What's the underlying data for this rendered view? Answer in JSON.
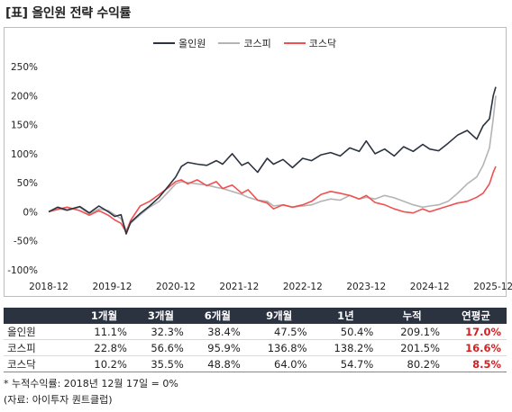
{
  "title": "[표] 올인원 전략 수익률",
  "chart_data": {
    "type": "line",
    "ylim": [
      -100,
      250
    ],
    "yticks": [
      -100,
      -50,
      0,
      50,
      100,
      150,
      200,
      250
    ],
    "ytick_labels": [
      "-100%",
      "-50%",
      "0%",
      "50%",
      "100%",
      "150%",
      "200%",
      "250%"
    ],
    "xlim": [
      2018.96,
      2026.0
    ],
    "xticks": [
      2018.96,
      2019.96,
      2020.96,
      2021.96,
      2022.96,
      2023.96,
      2024.96,
      2025.96
    ],
    "xtick_labels": [
      "2018-12",
      "2019-12",
      "2020-12",
      "2021-12",
      "2022-12",
      "2023-12",
      "2024-12",
      "2025-12"
    ],
    "legend_position": "top-center",
    "series": [
      {
        "name": "올인원",
        "color": "#2b3240",
        "x": [
          2018.96,
          2019.1,
          2019.25,
          2019.45,
          2019.6,
          2019.75,
          2019.9,
          2020.0,
          2020.1,
          2020.18,
          2020.25,
          2020.4,
          2020.55,
          2020.7,
          2020.85,
          2020.96,
          2021.05,
          2021.15,
          2021.3,
          2021.45,
          2021.6,
          2021.7,
          2021.85,
          2022.0,
          2022.1,
          2022.25,
          2022.4,
          2022.5,
          2022.65,
          2022.8,
          2022.96,
          2023.1,
          2023.25,
          2023.4,
          2023.55,
          2023.7,
          2023.85,
          2023.96,
          2024.1,
          2024.25,
          2024.4,
          2024.55,
          2024.7,
          2024.85,
          2024.96,
          2025.1,
          2025.25,
          2025.4,
          2025.55,
          2025.7,
          2025.8,
          2025.9,
          2025.96,
          2026.0
        ],
        "y": [
          0,
          8,
          3,
          9,
          -2,
          10,
          0,
          -8,
          -5,
          -38,
          -18,
          -3,
          10,
          25,
          45,
          60,
          78,
          85,
          82,
          80,
          88,
          82,
          100,
          80,
          85,
          68,
          92,
          82,
          90,
          76,
          92,
          88,
          98,
          102,
          96,
          110,
          104,
          122,
          100,
          108,
          96,
          112,
          104,
          116,
          108,
          105,
          118,
          132,
          140,
          125,
          148,
          160,
          200,
          215
        ]
      },
      {
        "name": "코스피",
        "color": "#b4b4b4",
        "x": [
          2018.96,
          2019.1,
          2019.25,
          2019.45,
          2019.6,
          2019.75,
          2019.9,
          2020.0,
          2020.1,
          2020.18,
          2020.25,
          2020.4,
          2020.55,
          2020.7,
          2020.85,
          2020.96,
          2021.05,
          2021.15,
          2021.3,
          2021.45,
          2021.6,
          2021.7,
          2021.85,
          2022.0,
          2022.1,
          2022.25,
          2022.4,
          2022.5,
          2022.65,
          2022.8,
          2022.96,
          2023.1,
          2023.25,
          2023.4,
          2023.55,
          2023.7,
          2023.85,
          2023.96,
          2024.1,
          2024.25,
          2024.4,
          2024.55,
          2024.7,
          2024.85,
          2024.96,
          2025.1,
          2025.25,
          2025.4,
          2025.55,
          2025.7,
          2025.8,
          2025.9,
          2025.96,
          2026.0
        ],
        "y": [
          0,
          6,
          2,
          8,
          -4,
          5,
          2,
          -5,
          -12,
          -32,
          -20,
          -5,
          8,
          18,
          35,
          48,
          52,
          50,
          48,
          46,
          42,
          40,
          35,
          30,
          25,
          20,
          18,
          10,
          12,
          8,
          10,
          12,
          18,
          22,
          20,
          28,
          22,
          25,
          22,
          28,
          24,
          18,
          12,
          8,
          10,
          12,
          18,
          32,
          48,
          60,
          80,
          110,
          160,
          200
        ]
      },
      {
        "name": "코스닥",
        "color": "#f05050",
        "x": [
          2018.96,
          2019.1,
          2019.25,
          2019.45,
          2019.6,
          2019.75,
          2019.9,
          2020.0,
          2020.1,
          2020.18,
          2020.25,
          2020.4,
          2020.55,
          2020.7,
          2020.85,
          2020.96,
          2021.05,
          2021.15,
          2021.3,
          2021.45,
          2021.6,
          2021.7,
          2021.85,
          2022.0,
          2022.1,
          2022.25,
          2022.4,
          2022.5,
          2022.65,
          2022.8,
          2022.96,
          2023.1,
          2023.25,
          2023.4,
          2023.55,
          2023.7,
          2023.85,
          2023.96,
          2024.1,
          2024.25,
          2024.4,
          2024.55,
          2024.7,
          2024.85,
          2024.96,
          2025.1,
          2025.25,
          2025.4,
          2025.55,
          2025.7,
          2025.8,
          2025.9,
          2025.96,
          2026.0
        ],
        "y": [
          0,
          4,
          8,
          2,
          -6,
          2,
          -6,
          -14,
          -20,
          -35,
          -15,
          10,
          18,
          30,
          42,
          52,
          55,
          48,
          55,
          45,
          52,
          40,
          46,
          32,
          38,
          20,
          15,
          5,
          12,
          8,
          12,
          18,
          30,
          35,
          32,
          28,
          22,
          28,
          16,
          12,
          5,
          0,
          -2,
          5,
          0,
          5,
          10,
          15,
          18,
          25,
          32,
          48,
          68,
          78
        ]
      }
    ]
  },
  "table": {
    "headers": [
      "",
      "1개월",
      "3개월",
      "6개월",
      "9개월",
      "1년",
      "누적",
      "연평균"
    ],
    "rows": [
      {
        "label": "올인원",
        "values": [
          "11.1%",
          "32.3%",
          "38.4%",
          "47.5%",
          "50.4%",
          "209.1%"
        ],
        "annual": "17.0%"
      },
      {
        "label": "코스피",
        "values": [
          "22.8%",
          "56.6%",
          "95.9%",
          "136.8%",
          "138.2%",
          "201.5%"
        ],
        "annual": "16.6%"
      },
      {
        "label": "코스닥",
        "values": [
          "10.2%",
          "35.5%",
          "48.8%",
          "64.0%",
          "54.7%",
          "80.2%"
        ],
        "annual": "8.5%"
      }
    ]
  },
  "footnote": "* 누적수익률: 2018년 12월 17일 = 0%",
  "source": "(자료: 아이투자 퀀트클럽)"
}
